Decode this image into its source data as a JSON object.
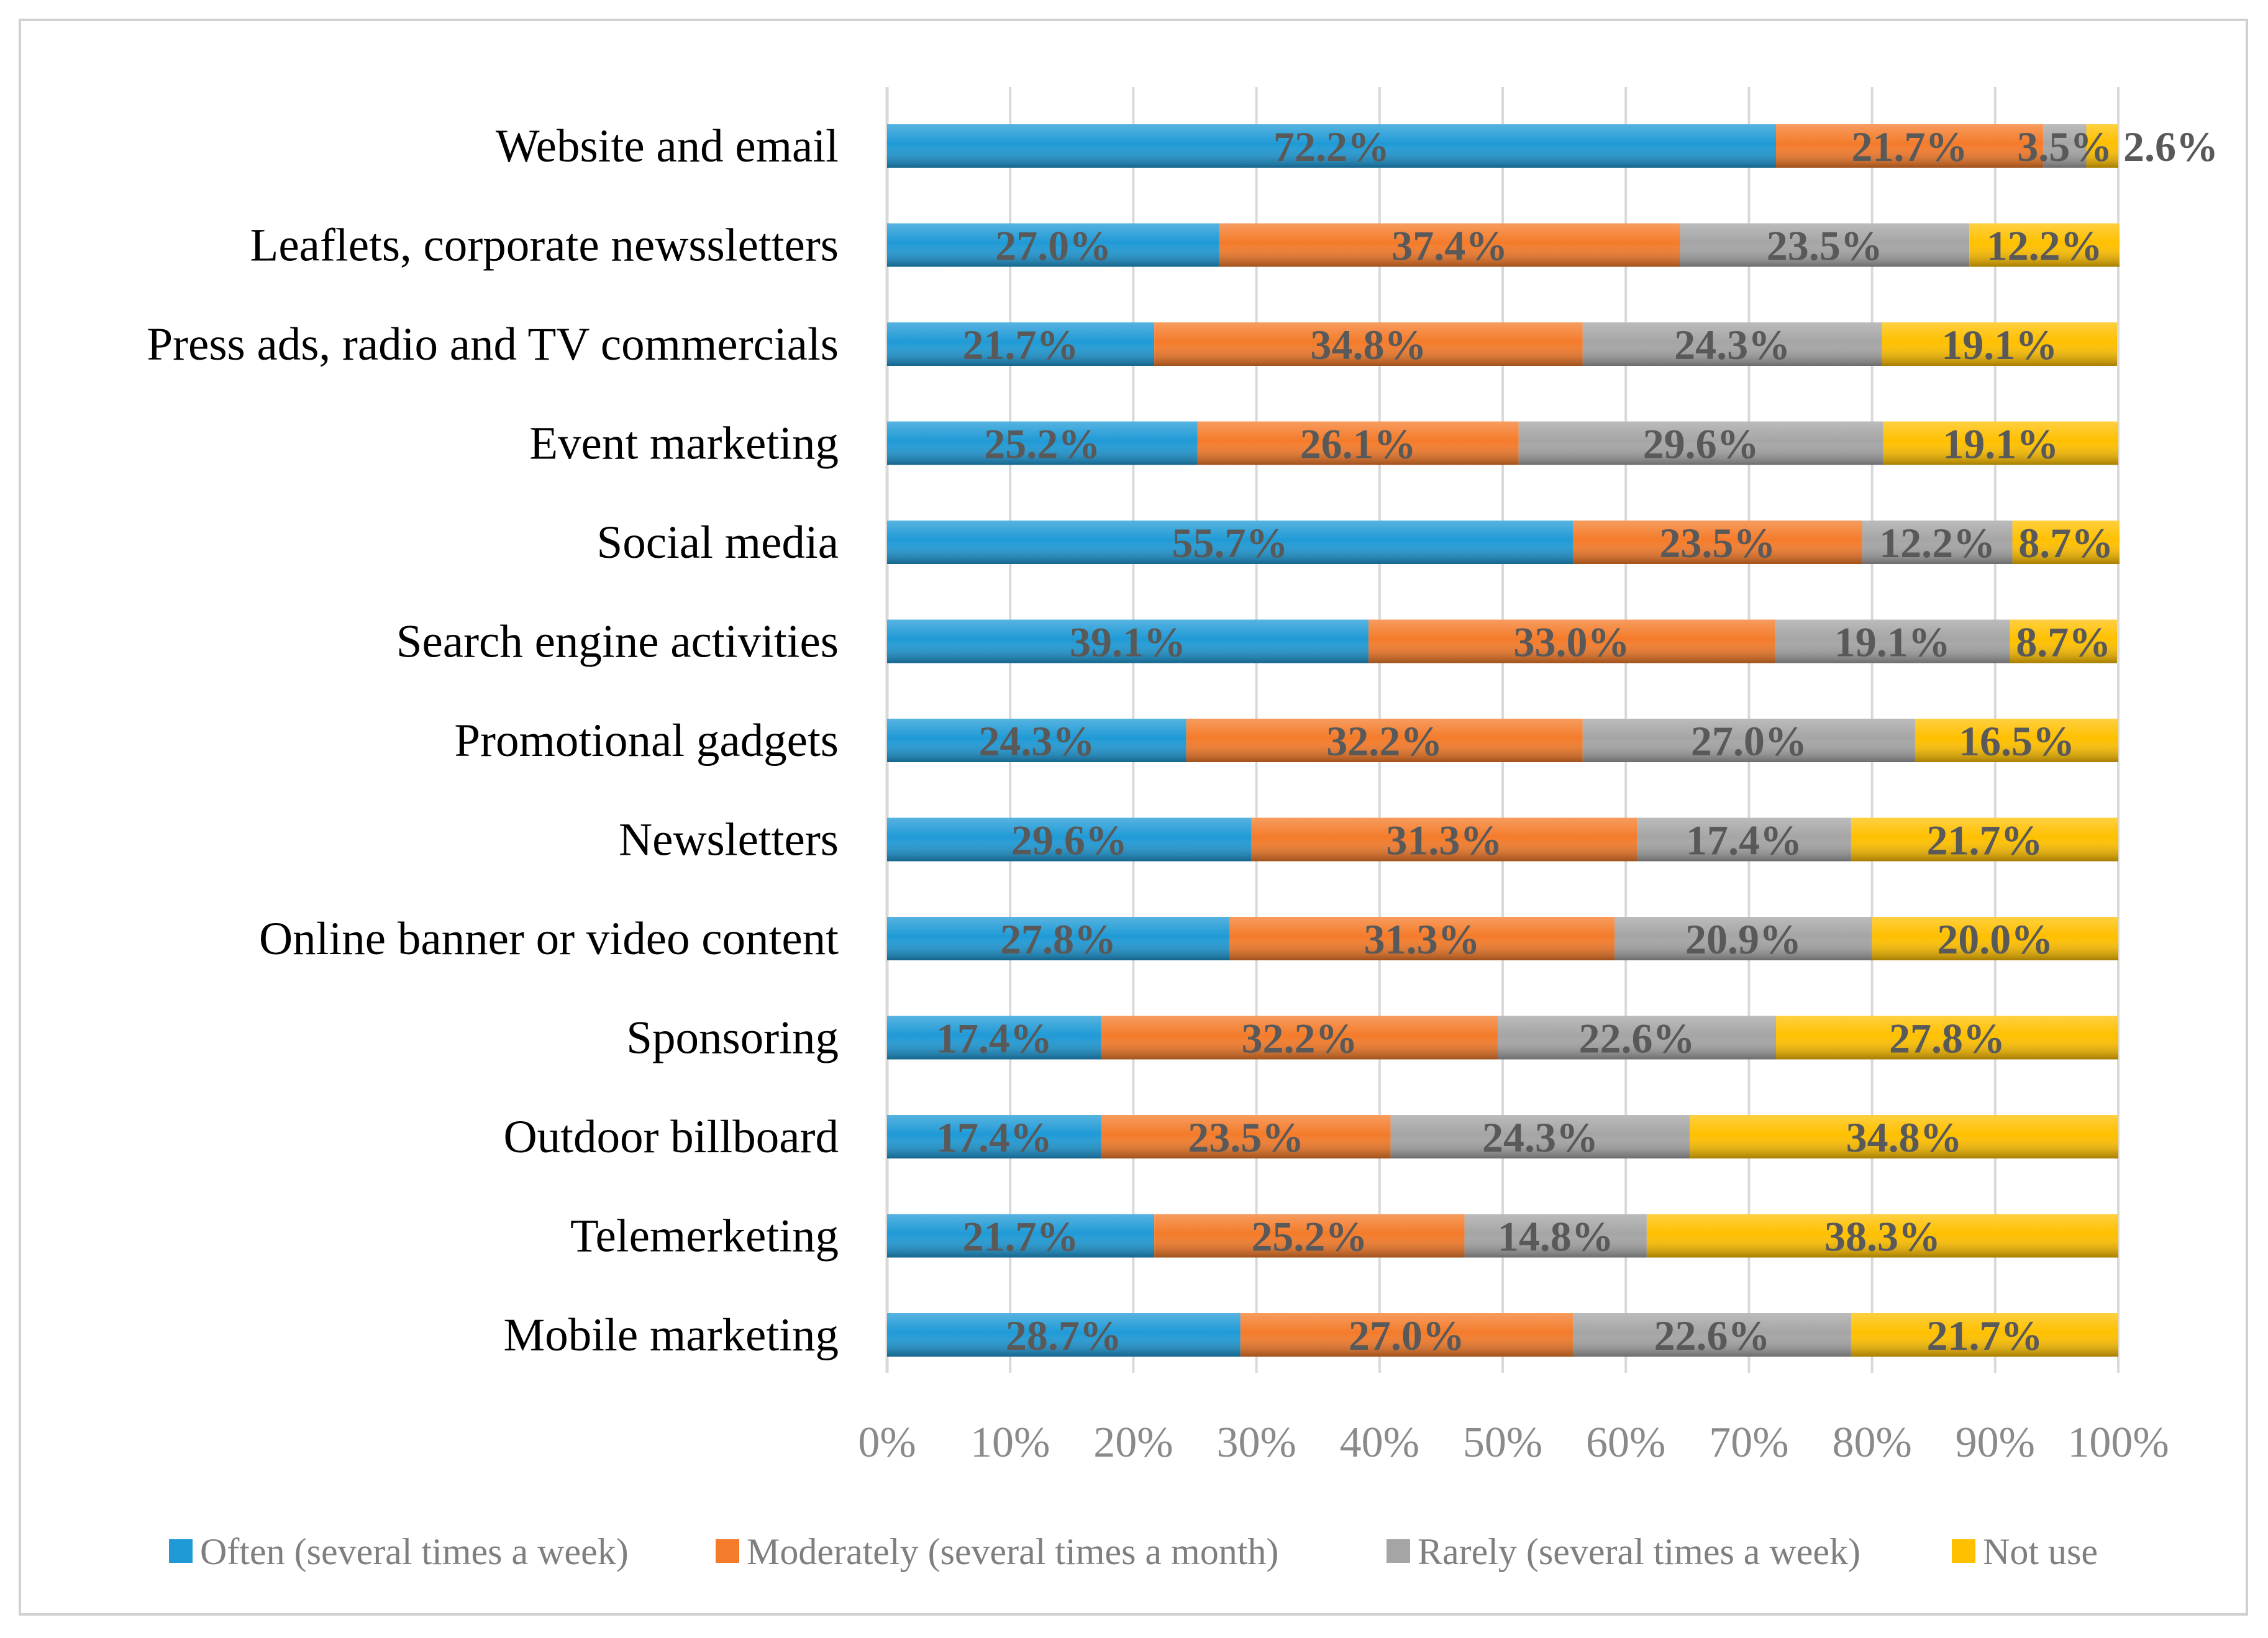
{
  "chart_data": {
    "type": "bar",
    "orientation": "horizontal",
    "stacked": "percent",
    "title": "",
    "xlabel": "",
    "ylabel": "",
    "xlim": [
      0,
      100
    ],
    "grid": true,
    "legend_position": "bottom",
    "categories": [
      "Website and email",
      "Leaflets, corporate newssletters",
      "Press ads, radio and TV commercials",
      "Event marketing",
      "Social media",
      "Search engine activities",
      "Promotional gadgets",
      "Newsletters",
      "Online banner or video content",
      "Sponsoring",
      "Outdoor billboard",
      "Telemerketing",
      "Mobile marketing"
    ],
    "x_ticks": [
      "0%",
      "10%",
      "20%",
      "30%",
      "40%",
      "50%",
      "60%",
      "70%",
      "80%",
      "90%",
      "100%"
    ],
    "series": [
      {
        "name": "Often (several times a week)",
        "color": "#1f9ad6",
        "values": [
          72.2,
          27.0,
          21.7,
          25.2,
          55.7,
          39.1,
          24.3,
          29.6,
          27.8,
          17.4,
          17.4,
          21.7,
          28.7
        ],
        "labels": [
          "72.2%",
          "27.0%",
          "21.7%",
          "25.2%",
          "55.7%",
          "39.1%",
          "24.3%",
          "29.6%",
          "27.8%",
          "17.4%",
          "17.4%",
          "21.7%",
          "28.7%"
        ]
      },
      {
        "name": "Moderately  (several times a month)",
        "color": "#f47b2a",
        "values": [
          21.7,
          37.4,
          34.8,
          26.1,
          23.5,
          33.0,
          32.2,
          31.3,
          31.3,
          32.2,
          23.5,
          25.2,
          27.0
        ],
        "labels": [
          "21.7%",
          "37.4%",
          "34.8%",
          "26.1%",
          "23.5%",
          "33.0%",
          "32.2%",
          "31.3%",
          "31.3%",
          "32.2%",
          "23.5%",
          "25.2%",
          "27.0%"
        ]
      },
      {
        "name": "Rarely (several times a week)",
        "color": "#a5a5a5",
        "values": [
          3.5,
          23.5,
          24.3,
          29.6,
          12.2,
          19.1,
          27.0,
          17.4,
          20.9,
          22.6,
          24.3,
          14.8,
          22.6
        ],
        "labels": [
          "3.5%",
          "23.5%",
          "24.3%",
          "29.6%",
          "12.2%",
          "19.1%",
          "27.0%",
          "17.4%",
          "20.9%",
          "22.6%",
          "24.3%",
          "14.8%",
          "22.6%"
        ]
      },
      {
        "name": "Not use",
        "color": "#ffc000",
        "values": [
          2.6,
          12.2,
          19.1,
          19.1,
          8.7,
          8.7,
          16.5,
          21.7,
          20.0,
          27.8,
          34.8,
          38.3,
          21.7
        ],
        "labels": [
          "2.6%",
          "12.2%",
          "19.1%",
          "19.1%",
          "8.7%",
          "8.7%",
          "16.5%",
          "21.7%",
          "20.0%",
          "27.8%",
          "34.8%",
          "38.3%",
          "21.7%"
        ]
      }
    ]
  }
}
